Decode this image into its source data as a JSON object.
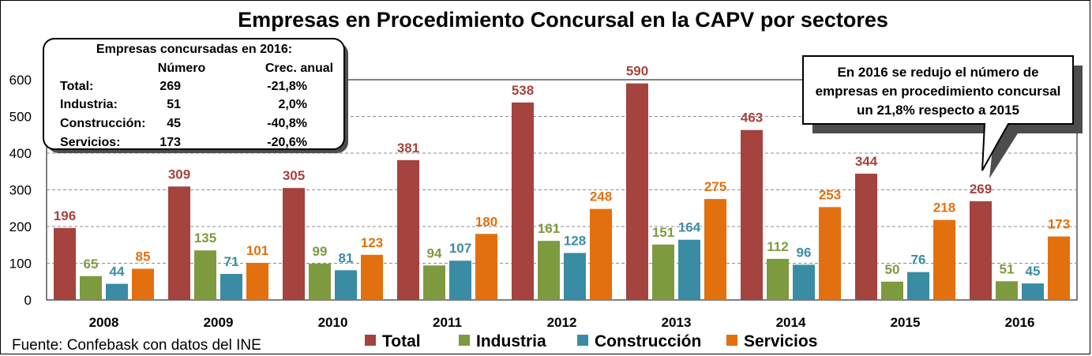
{
  "chart_data": {
    "type": "bar",
    "title": "Empresas en Procedimiento Concursal en la CAPV por sectores",
    "categories": [
      "2008",
      "2009",
      "2010",
      "2011",
      "2012",
      "2013",
      "2014",
      "2015",
      "2016"
    ],
    "series": [
      {
        "name": "Total",
        "color": "#A5433F",
        "values": [
          196,
          309,
          305,
          381,
          538,
          590,
          463,
          344,
          269
        ]
      },
      {
        "name": "Industria",
        "color": "#7E9A3F",
        "values": [
          65,
          135,
          99,
          94,
          161,
          151,
          112,
          50,
          51
        ]
      },
      {
        "name": "Construcción",
        "color": "#3A8CA4",
        "values": [
          44,
          71,
          81,
          107,
          128,
          164,
          96,
          76,
          45
        ]
      },
      {
        "name": "Servicios",
        "color": "#E3700E",
        "values": [
          85,
          101,
          123,
          180,
          248,
          275,
          253,
          218,
          173
        ]
      }
    ],
    "label_colors": [
      "#A5433F",
      "#7E9A3F",
      "#3A8CA4",
      "#E3700E"
    ],
    "ylim": [
      0,
      600
    ],
    "yticks": [
      "0",
      "100",
      "200",
      "300",
      "400",
      "500",
      "600"
    ],
    "grid": true,
    "legend_position": "bottom"
  },
  "source": "Fuente: Confebask con datos del INE",
  "summary_box": {
    "heading": "Empresas concursadas en 2016:",
    "col_number": "Número",
    "col_growth": "Crec. anual",
    "rows": [
      {
        "label": "Total:",
        "number": "269",
        "growth": "-21,8%"
      },
      {
        "label": "Industria:",
        "number": "51",
        "growth": "2,0%"
      },
      {
        "label": "Construcción:",
        "number": "45",
        "growth": "-40,8%"
      },
      {
        "label": "Servicios:",
        "number": "173",
        "growth": "-20,6%"
      }
    ]
  },
  "callout": {
    "lines": [
      "En 2016 se redujo el número de",
      "empresas en procedimiento concursal",
      "un 21,8% respecto a 2015"
    ]
  }
}
